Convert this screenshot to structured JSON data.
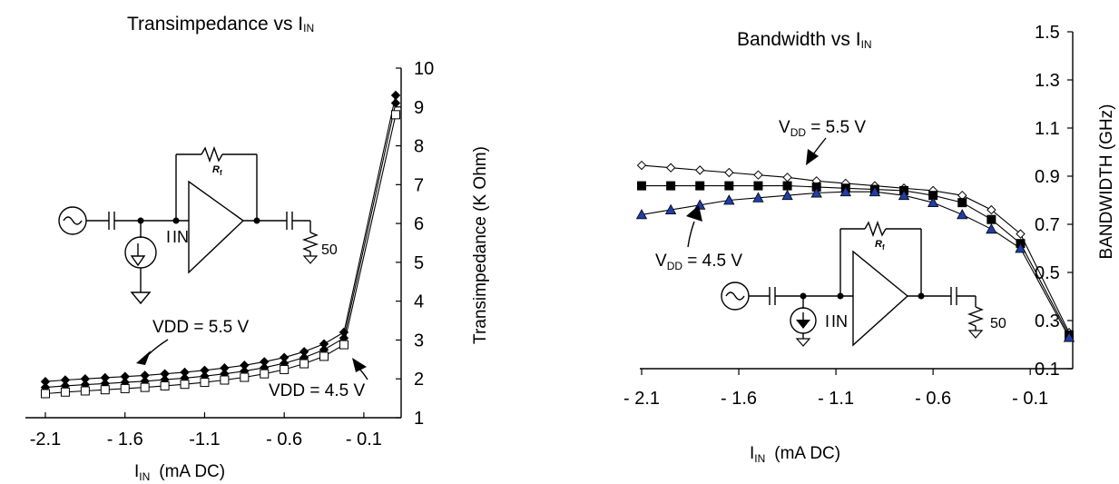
{
  "chart_data": [
    {
      "type": "line",
      "title": "Transimpedance vs I",
      "title_sub": "IN",
      "xlabel": "I",
      "xlabel_sub": "IN",
      "xlabel_unit": "(mA DC)",
      "ylabel": "Transimpedance (K Ohm)",
      "xlim": [
        -2.1,
        0.1
      ],
      "ylim": [
        1,
        10
      ],
      "x_tick_labels": [
        "-2.1",
        "- 1.6",
        "-1.1",
        "- 0.6",
        "- 0.1"
      ],
      "y_tick_labels": [
        "1",
        "2",
        "3",
        "4",
        "5",
        "6",
        "7",
        "8",
        "9",
        "10"
      ],
      "x": [
        -2.1,
        -1.975,
        -1.85,
        -1.725,
        -1.6,
        -1.475,
        -1.35,
        -1.225,
        -1.1,
        -0.975,
        -0.85,
        -0.725,
        -0.6,
        -0.475,
        -0.35,
        -0.225,
        0.1
      ],
      "series": [
        {
          "name": "VDD = 5.5 V",
          "marker": "filled-diamond",
          "values": [
            1.93,
            1.97,
            2.0,
            2.03,
            2.06,
            2.09,
            2.13,
            2.17,
            2.22,
            2.28,
            2.35,
            2.44,
            2.55,
            2.7,
            2.9,
            3.2,
            9.3
          ]
        },
        {
          "name": "",
          "marker": "filled-diamond",
          "values": [
            1.78,
            1.82,
            1.85,
            1.88,
            1.91,
            1.94,
            1.98,
            2.02,
            2.07,
            2.13,
            2.2,
            2.29,
            2.4,
            2.55,
            2.75,
            3.05,
            9.1
          ]
        },
        {
          "name": "VDD = 4.5 V",
          "marker": "open-square",
          "values": [
            1.62,
            1.66,
            1.69,
            1.72,
            1.75,
            1.78,
            1.82,
            1.86,
            1.91,
            1.97,
            2.04,
            2.13,
            2.24,
            2.39,
            2.58,
            2.88,
            8.8
          ]
        }
      ],
      "annotations": [
        {
          "text": "VDD = 5.5 V"
        },
        {
          "text": "VDD = 4.5 V"
        }
      ],
      "inset_labels": {
        "input": "IIN",
        "feedback": "Rf",
        "load": "50"
      },
      "grid": false
    },
    {
      "type": "line",
      "title": "Bandwidth  vs I",
      "title_sub": "IN",
      "xlabel": "I",
      "xlabel_sub": "IN",
      "xlabel_unit": "(mA DC)",
      "ylabel": "BANDWIDTH (GHz)",
      "xlim": [
        -2.1,
        0.1
      ],
      "ylim": [
        0.1,
        1.5
      ],
      "x_tick_labels": [
        "- 2.1",
        "- 1.6",
        "- 1.1",
        "- 0.6",
        "- 0.1"
      ],
      "y_tick_labels": [
        "0.1",
        "0.3",
        "0.5",
        "0.7",
        "0.9",
        "1.1",
        "1.3",
        "1.5"
      ],
      "x": [
        -2.1,
        -1.95,
        -1.8,
        -1.65,
        -1.5,
        -1.35,
        -1.2,
        -1.05,
        -0.9,
        -0.75,
        -0.6,
        -0.45,
        -0.3,
        -0.15,
        0.1
      ],
      "series": [
        {
          "name": "V_DD = 5.5 V",
          "marker": "open-diamond",
          "values": [
            0.945,
            0.935,
            0.925,
            0.915,
            0.905,
            0.895,
            0.88,
            0.87,
            0.86,
            0.85,
            0.84,
            0.82,
            0.76,
            0.66,
            0.25
          ]
        },
        {
          "name": "",
          "marker": "filled-square",
          "values": [
            0.86,
            0.86,
            0.86,
            0.86,
            0.86,
            0.86,
            0.855,
            0.85,
            0.845,
            0.84,
            0.82,
            0.79,
            0.72,
            0.62,
            0.24
          ]
        },
        {
          "name": "V_DD = 4.5 V",
          "marker": "filled-triangle",
          "values": [
            0.74,
            0.76,
            0.78,
            0.8,
            0.81,
            0.82,
            0.83,
            0.835,
            0.835,
            0.82,
            0.79,
            0.74,
            0.68,
            0.6,
            0.23
          ]
        }
      ],
      "annotations": [
        {
          "text": "V",
          "sub": "DD",
          "rest": " = 5.5 V"
        },
        {
          "text": "V",
          "sub": "DD",
          "rest": " = 4.5 V"
        }
      ],
      "inset_labels": {
        "input": "IIN",
        "feedback": "Rf",
        "load": "50"
      },
      "grid": false
    }
  ]
}
